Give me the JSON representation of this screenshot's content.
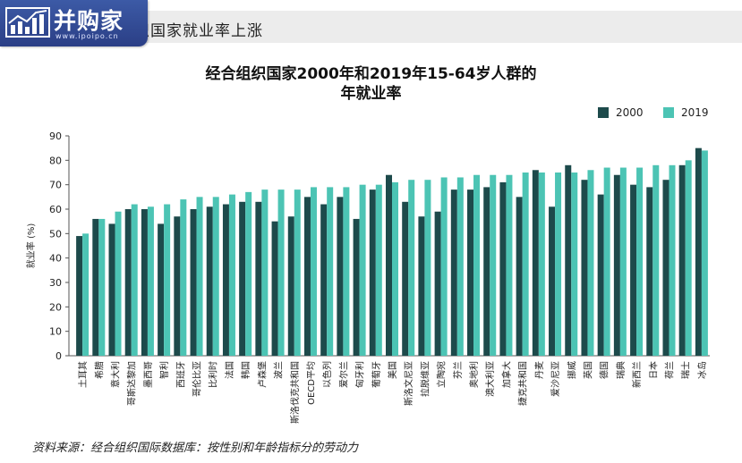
{
  "header": {
    "title": "织国家就业率上涨"
  },
  "logo": {
    "brand": "并购家",
    "url": "www.ipoipo.cn",
    "icon": "chart-icon"
  },
  "source_note": "资料来源：经合组织国际数据库：按性别和年龄指标分的劳动力",
  "colors": {
    "series_2000": "#1d4a4b",
    "series_2019": "#4cc4b4"
  },
  "chart_data": {
    "type": "bar",
    "title_line1": "经合组织国家2000年和2019年15-64岁人群的",
    "title_line2": "年就业率",
    "ylabel": "就业率 (%)",
    "ylim": [
      0,
      90
    ],
    "yticks": [
      "0",
      "10",
      "20",
      "30",
      "40",
      "50",
      "60",
      "70",
      "80",
      "90"
    ],
    "grid": false,
    "legend_position": "top-right",
    "categories": [
      "土耳其",
      "希腊",
      "意大利",
      "哥斯达黎加",
      "墨西哥",
      "智利",
      "西班牙",
      "哥伦比亚",
      "比利时",
      "法国",
      "韩国",
      "卢森堡",
      "波兰",
      "斯洛伐克共和国",
      "OECD平均",
      "以色列",
      "爱尔兰",
      "匈牙利",
      "葡萄牙",
      "美国",
      "斯洛文尼亚",
      "拉脱维亚",
      "立陶宛",
      "芬兰",
      "奥地利",
      "澳大利亚",
      "加拿大",
      "捷克共和国",
      "丹麦",
      "爱沙尼亚",
      "挪威",
      "英国",
      "德国",
      "瑞典",
      "新西兰",
      "日本",
      "荷兰",
      "瑞士",
      "冰岛"
    ],
    "series": [
      {
        "name": "2000",
        "values": [
          49,
          56,
          54,
          60,
          60,
          54,
          57,
          60,
          61,
          62,
          63,
          63,
          55,
          57,
          65,
          62,
          65,
          56,
          68,
          74,
          63,
          57,
          59,
          68,
          68,
          69,
          71,
          65,
          76,
          61,
          78,
          72,
          66,
          74,
          70,
          69,
          72,
          78,
          85
        ]
      },
      {
        "name": "2019",
        "values": [
          50,
          56,
          59,
          62,
          61,
          62,
          64,
          65,
          65,
          66,
          67,
          68,
          68,
          68,
          69,
          69,
          69,
          70,
          70,
          71,
          72,
          72,
          73,
          73,
          74,
          74,
          74,
          75,
          75,
          75,
          75,
          76,
          77,
          77,
          77,
          78,
          78,
          80,
          84
        ]
      }
    ]
  }
}
